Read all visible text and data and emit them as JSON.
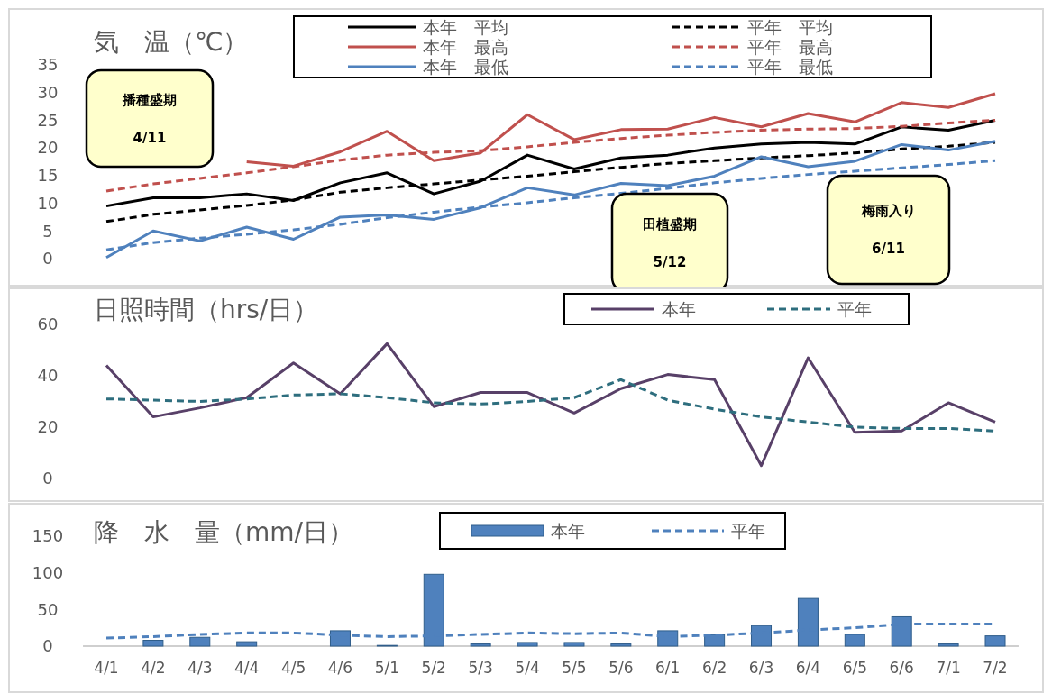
{
  "chart_data": [
    {
      "type": "line",
      "title": "気　温（℃）",
      "categories": [
        null,
        null,
        null,
        null,
        null,
        null,
        null,
        null,
        null,
        null,
        null,
        null,
        null,
        null,
        null,
        null,
        null,
        null,
        null,
        null
      ],
      "tick_labels": "y",
      "ylim": [
        0,
        35
      ],
      "yticks": [
        0,
        5,
        10,
        15,
        20,
        25,
        30,
        35
      ],
      "legend": "top",
      "grid": false,
      "series": [
        {
          "name": "本年　平均",
          "color": "#000000",
          "line_style": "solid",
          "values": [
            9.5,
            11,
            11,
            11.7,
            10.5,
            13.7,
            15.5,
            11.7,
            14,
            18.7,
            16.2,
            18.2,
            18.7,
            20,
            20.7,
            21,
            20.7,
            23.8,
            23.2,
            25
          ]
        },
        {
          "name": "平年　平均",
          "color": "#000000",
          "line_style": "dashed",
          "values": [
            6.7,
            8,
            8.8,
            9.6,
            10.6,
            12,
            12.8,
            13.5,
            14.2,
            14.9,
            15.7,
            16.5,
            17.2,
            17.7,
            18.2,
            18.6,
            19.1,
            19.8,
            20.3,
            21
          ]
        },
        {
          "name": "本年　最高",
          "color": "#c0504d",
          "line_style": "solid",
          "values": [
            null,
            null,
            null,
            17.5,
            16.7,
            19.3,
            23,
            17.7,
            19.1,
            26,
            21.5,
            23.3,
            23.4,
            25.5,
            23.8,
            26.2,
            24.7,
            28.2,
            27.3,
            29.8
          ]
        },
        {
          "name": "平年　最高",
          "color": "#c0504d",
          "line_style": "dashed",
          "values": [
            12.2,
            13.5,
            14.5,
            15.5,
            16.6,
            17.8,
            18.7,
            19.2,
            19.5,
            20.2,
            21,
            21.7,
            22.3,
            22.8,
            23.2,
            23.4,
            23.5,
            23.9,
            24.5,
            25
          ]
        },
        {
          "name": "本年　最低",
          "color": "#4f81bd",
          "line_style": "solid",
          "values": [
            0.2,
            5,
            3.2,
            5.7,
            3.5,
            7.5,
            7.9,
            7.1,
            9.2,
            12.8,
            11.5,
            13.6,
            13.2,
            14.9,
            18.4,
            16.6,
            17.6,
            20.6,
            19.6,
            21.2
          ]
        },
        {
          "name": "平年　最低",
          "color": "#4f81bd",
          "line_style": "dashed",
          "values": [
            1.6,
            2.9,
            3.7,
            4.4,
            5.2,
            6.2,
            7.4,
            8.4,
            9.3,
            10.1,
            11,
            11.8,
            12.7,
            13.7,
            14.5,
            15.2,
            15.8,
            16.4,
            17,
            17.7
          ]
        }
      ],
      "annotations": [
        "播種盛期\n4/11",
        "田植盛期\n5/12",
        "梅雨入り\n6/11"
      ]
    },
    {
      "type": "line",
      "title": "日照時間（hrs/日）",
      "categories": [
        null,
        null,
        null,
        null,
        null,
        null,
        null,
        null,
        null,
        null,
        null,
        null,
        null,
        null,
        null,
        null,
        null,
        null,
        null,
        null
      ],
      "tick_labels": "y",
      "ylim": [
        0,
        60
      ],
      "yticks": [
        0,
        20,
        40,
        60
      ],
      "legend": "top",
      "grid": false,
      "series": [
        {
          "name": "本年",
          "color": "#584068",
          "line_style": "solid",
          "values": [
            44,
            24,
            27.5,
            31.5,
            45,
            33,
            52.5,
            28,
            33.5,
            33.5,
            25.5,
            35,
            40.5,
            38.5,
            5,
            47,
            18,
            18.5,
            29.5,
            22
          ]
        },
        {
          "name": "平年",
          "color": "#2e6e7e",
          "line_style": "dashed",
          "values": [
            31,
            30.5,
            30,
            31,
            32.5,
            33,
            31.5,
            29.5,
            29,
            30,
            31.5,
            38.5,
            30.5,
            27,
            24,
            22,
            20,
            19.5,
            19.5,
            18.5
          ]
        }
      ]
    },
    {
      "type": "bar",
      "title": "降　水　量（mm/日）",
      "categories": [
        "4/1",
        "4/2",
        "4/3",
        "4/4",
        "4/5",
        "4/6",
        "5/1",
        "5/2",
        "5/3",
        "5/4",
        "5/5",
        "5/6",
        "6/1",
        "6/2",
        "6/3",
        "6/4",
        "6/5",
        "6/6",
        "7/1",
        "7/2"
      ],
      "ylim": [
        0,
        150
      ],
      "yticks": [
        0,
        50,
        100,
        150
      ],
      "legend": "top",
      "grid": false,
      "series": [
        {
          "name": "本年",
          "color": "#4f81bd",
          "values": [
            0,
            8,
            12,
            6,
            0,
            21,
            1,
            98,
            3,
            5,
            5,
            3,
            21,
            16,
            28,
            65,
            16,
            40,
            3,
            14
          ]
        },
        {
          "name": "平年",
          "type": "line",
          "color": "#4f81bd",
          "line_style": "dashed",
          "values": [
            11,
            13,
            16,
            18,
            18,
            15,
            13,
            14,
            16,
            18,
            17,
            18,
            13,
            15,
            18,
            22,
            25,
            30,
            30,
            30
          ]
        }
      ]
    }
  ]
}
